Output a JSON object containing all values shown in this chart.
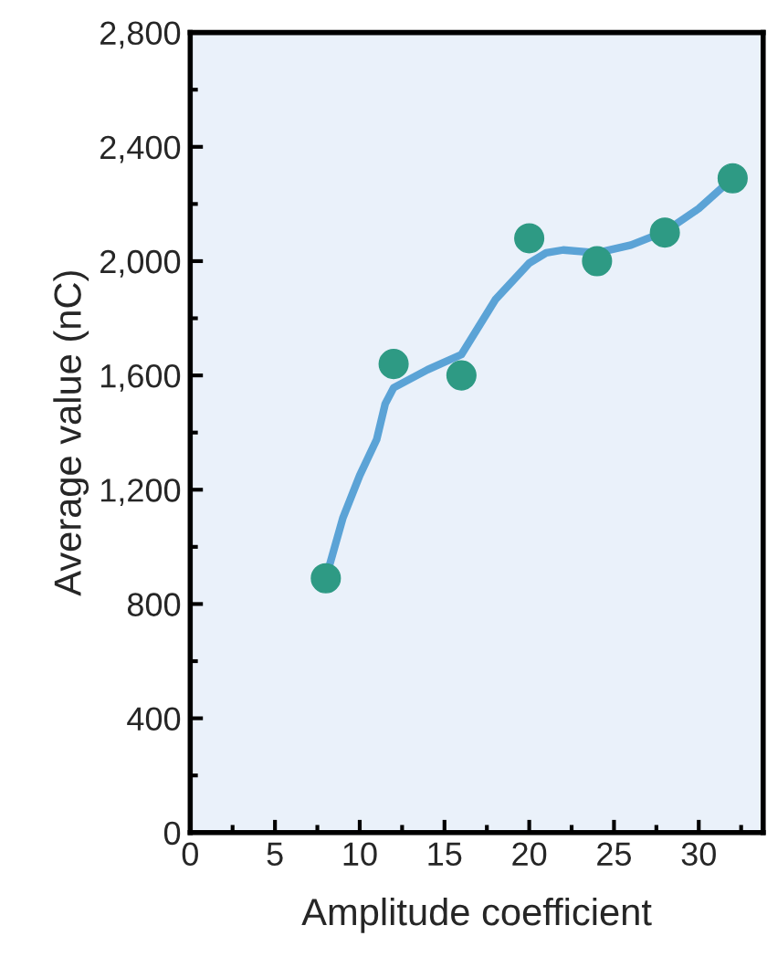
{
  "chart_data": {
    "type": "scatter",
    "xlabel": "Amplitude coefficient",
    "ylabel": "Average value (nC)",
    "x": [
      8,
      12,
      16,
      20,
      24,
      28,
      32
    ],
    "series": [
      {
        "color": "#2e9a84",
        "values": [
          890,
          1640,
          1600,
          2080,
          2000,
          2100,
          2290
        ],
        "marker": "circle"
      },
      {
        "type": "line",
        "color": "#5ba3d6",
        "x": [
          8,
          9,
          10,
          11,
          11.5,
          12,
          14,
          16,
          18,
          20,
          21,
          22,
          24,
          26,
          28,
          30,
          32
        ],
        "values": [
          890,
          1100,
          1250,
          1376,
          1500,
          1557,
          1620,
          1673,
          1865,
          1993,
          2029,
          2039,
          2029,
          2056,
          2103,
          2184,
          2290
        ],
        "line_style": "solid",
        "marker": "none"
      }
    ],
    "xlim": [
      0,
      33.8
    ],
    "xticks": [
      0,
      5,
      10,
      15,
      20,
      25,
      30
    ],
    "ylim": [
      0,
      2800
    ],
    "yticks": [
      0,
      {
        "value": 400,
        "label": "400"
      },
      {
        "value": 800,
        "label": "800"
      },
      {
        "value": 1200,
        "label": "1,200"
      },
      {
        "value": 1600,
        "label": "1,600"
      },
      {
        "value": 2000,
        "label": "2,000"
      },
      {
        "value": 2400,
        "label": "2,400"
      },
      {
        "value": 2800,
        "label": "2,800"
      }
    ],
    "grid": false,
    "legend": false
  }
}
